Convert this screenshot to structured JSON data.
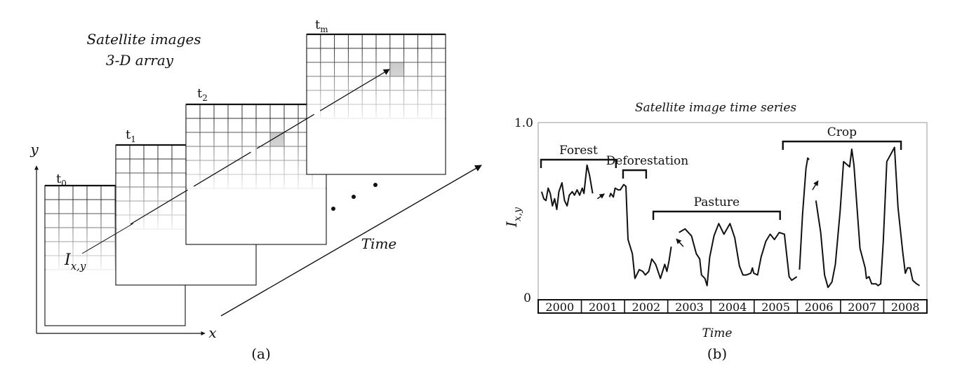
{
  "panel_a": {
    "title_line1": "Satellite images",
    "title_line2": "3-D array",
    "frames": [
      {
        "label_base": "t",
        "label_sub": "0"
      },
      {
        "label_base": "t",
        "label_sub": "1"
      },
      {
        "label_base": "t",
        "label_sub": "2"
      },
      {
        "label_base": "t",
        "label_sub": "m"
      }
    ],
    "y_axis": "y",
    "x_axis": "x",
    "pixel_label_base": "I",
    "pixel_label_sub": "x,y",
    "time_label": "Time",
    "caption": "(a)"
  },
  "panel_b": {
    "caption": "(b)"
  },
  "chart_data": {
    "type": "line",
    "title": "Satellite image time series",
    "xlabel": "Time",
    "ylabel": "I",
    "ylabel_sub": "x,y",
    "ylim": [
      0,
      1.0
    ],
    "y_ticks": [
      "1.0",
      "0"
    ],
    "years": [
      "2000",
      "2001",
      "2002",
      "2003",
      "2004",
      "2005",
      "2006",
      "2007",
      "2008"
    ],
    "phases": [
      {
        "label": "Forest",
        "from": 2000.0,
        "to": 2001.8
      },
      {
        "label": "Deforestation",
        "from": 2001.9,
        "to": 2002.5
      },
      {
        "label": "Pasture",
        "from": 2002.6,
        "to": 2005.6
      },
      {
        "label": "Crop",
        "from": 2005.6,
        "to": 2008.4
      }
    ],
    "series": [
      {
        "values": [
          [
            2000.08,
            0.61
          ],
          [
            2000.13,
            0.57
          ],
          [
            2000.18,
            0.56
          ],
          [
            2000.23,
            0.63
          ],
          [
            2000.28,
            0.6
          ],
          [
            2000.33,
            0.53
          ],
          [
            2000.38,
            0.57
          ],
          [
            2000.43,
            0.51
          ],
          [
            2000.48,
            0.61
          ],
          [
            2000.55,
            0.66
          ],
          [
            2000.61,
            0.56
          ],
          [
            2000.67,
            0.53
          ],
          [
            2000.72,
            0.59
          ],
          [
            2000.79,
            0.61
          ],
          [
            2000.84,
            0.59
          ],
          [
            2000.9,
            0.62
          ],
          [
            2000.96,
            0.59
          ],
          [
            2001.02,
            0.63
          ],
          [
            2001.06,
            0.6
          ],
          [
            2001.13,
            0.76
          ],
          [
            2001.19,
            0.7
          ],
          [
            2001.26,
            0.6
          ]
        ]
      },
      {
        "values": [
          [
            2001.65,
            0.58
          ],
          [
            2001.68,
            0.6
          ],
          [
            2001.74,
            0.58
          ],
          [
            2001.78,
            0.63
          ],
          [
            2001.85,
            0.62
          ],
          [
            2001.9,
            0.62
          ],
          [
            2001.98,
            0.65
          ],
          [
            2002.03,
            0.64
          ],
          [
            2002.08,
            0.34
          ],
          [
            2002.18,
            0.26
          ],
          [
            2002.24,
            0.12
          ],
          [
            2002.34,
            0.17
          ],
          [
            2002.42,
            0.16
          ],
          [
            2002.48,
            0.14
          ],
          [
            2002.56,
            0.16
          ],
          [
            2002.63,
            0.23
          ],
          [
            2002.72,
            0.2
          ],
          [
            2002.83,
            0.12
          ],
          [
            2002.93,
            0.2
          ],
          [
            2002.98,
            0.16
          ],
          [
            2003.03,
            0.22
          ],
          [
            2003.08,
            0.3
          ]
        ]
      },
      {
        "values": [
          [
            2003.26,
            0.38
          ],
          [
            2003.4,
            0.4
          ],
          [
            2003.55,
            0.36
          ],
          [
            2003.66,
            0.26
          ],
          [
            2003.74,
            0.23
          ],
          [
            2003.78,
            0.14
          ],
          [
            2003.86,
            0.12
          ],
          [
            2003.91,
            0.08
          ],
          [
            2003.97,
            0.24
          ],
          [
            2004.07,
            0.36
          ],
          [
            2004.18,
            0.43
          ],
          [
            2004.3,
            0.37
          ],
          [
            2004.44,
            0.43
          ],
          [
            2004.55,
            0.35
          ],
          [
            2004.66,
            0.19
          ],
          [
            2004.74,
            0.14
          ],
          [
            2004.82,
            0.14
          ],
          [
            2004.92,
            0.15
          ],
          [
            2004.96,
            0.18
          ],
          [
            2004.99,
            0.15
          ],
          [
            2005.08,
            0.14
          ],
          [
            2005.16,
            0.24
          ],
          [
            2005.27,
            0.33
          ],
          [
            2005.37,
            0.37
          ],
          [
            2005.47,
            0.34
          ],
          [
            2005.58,
            0.38
          ],
          [
            2005.7,
            0.37
          ],
          [
            2005.81,
            0.13
          ],
          [
            2005.87,
            0.11
          ],
          [
            2005.93,
            0.12
          ],
          [
            2005.99,
            0.13
          ]
        ]
      },
      {
        "values": [
          [
            2006.05,
            0.17
          ],
          [
            2006.12,
            0.48
          ],
          [
            2006.2,
            0.74
          ],
          [
            2006.24,
            0.8
          ],
          [
            2006.27,
            0.79
          ]
        ]
      },
      {
        "values": [
          [
            2006.43,
            0.56
          ],
          [
            2006.54,
            0.38
          ],
          [
            2006.63,
            0.14
          ],
          [
            2006.71,
            0.07
          ],
          [
            2006.8,
            0.1
          ],
          [
            2006.88,
            0.2
          ],
          [
            2006.99,
            0.5
          ],
          [
            2007.07,
            0.78
          ],
          [
            2007.21,
            0.75
          ],
          [
            2007.26,
            0.85
          ],
          [
            2007.31,
            0.76
          ],
          [
            2007.45,
            0.29
          ],
          [
            2007.57,
            0.18
          ],
          [
            2007.6,
            0.12
          ],
          [
            2007.66,
            0.13
          ],
          [
            2007.72,
            0.09
          ],
          [
            2007.82,
            0.09
          ],
          [
            2007.87,
            0.08
          ],
          [
            2007.93,
            0.09
          ],
          [
            2007.99,
            0.33
          ],
          [
            2008.07,
            0.78
          ],
          [
            2008.25,
            0.86
          ],
          [
            2008.33,
            0.52
          ],
          [
            2008.44,
            0.27
          ],
          [
            2008.5,
            0.15
          ],
          [
            2008.55,
            0.18
          ],
          [
            2008.61,
            0.18
          ],
          [
            2008.67,
            0.11
          ],
          [
            2008.76,
            0.09
          ],
          [
            2008.83,
            0.08
          ]
        ]
      }
    ],
    "arrows": [
      [
        2001.37,
        0.57
      ],
      [
        2003.36,
        0.3
      ],
      [
        2006.35,
        0.62
      ]
    ]
  }
}
